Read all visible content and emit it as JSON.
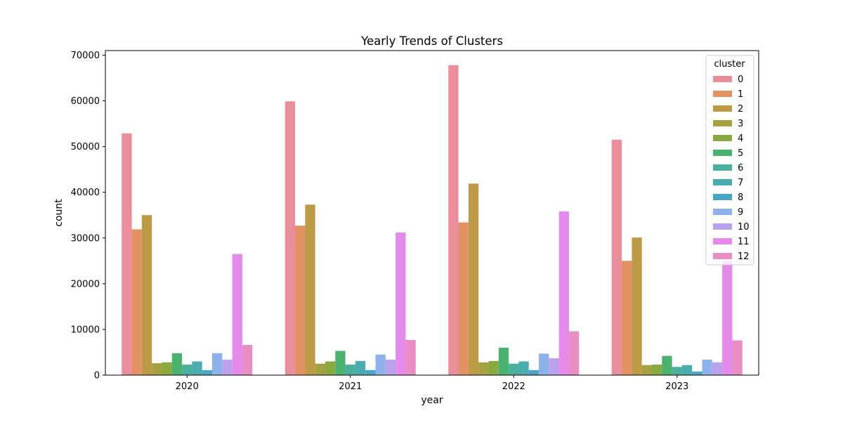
{
  "chart_data": {
    "type": "bar",
    "title": "Yearly Trends of Clusters",
    "xlabel": "year",
    "ylabel": "count",
    "categories": [
      "2020",
      "2021",
      "2022",
      "2023"
    ],
    "ylim": [
      0,
      71000
    ],
    "yticks": [
      0,
      10000,
      20000,
      30000,
      40000,
      50000,
      60000,
      70000
    ],
    "ytick_labels": [
      "0",
      "10000",
      "20000",
      "30000",
      "40000",
      "50000",
      "60000",
      "70000"
    ],
    "grid": false,
    "legend": {
      "title": "cluster",
      "placement": "top-right"
    },
    "series": [
      {
        "name": "0",
        "color": "#eb8e9b",
        "values": [
          52900,
          59900,
          67800,
          51500
        ]
      },
      {
        "name": "1",
        "color": "#e19162",
        "values": [
          31900,
          32700,
          33400,
          25000
        ]
      },
      {
        "name": "2",
        "color": "#bd9a45",
        "values": [
          35000,
          37300,
          41900,
          30100
        ]
      },
      {
        "name": "3",
        "color": "#a5a140",
        "values": [
          2600,
          2500,
          2800,
          2200
        ]
      },
      {
        "name": "4",
        "color": "#88aa41",
        "values": [
          2800,
          3000,
          3100,
          2300
        ]
      },
      {
        "name": "5",
        "color": "#4bb16f",
        "values": [
          4800,
          5300,
          6000,
          4200
        ]
      },
      {
        "name": "6",
        "color": "#4ab09b",
        "values": [
          2300,
          2300,
          2500,
          1800
        ]
      },
      {
        "name": "7",
        "color": "#4aacaf",
        "values": [
          3000,
          3100,
          3000,
          2200
        ]
      },
      {
        "name": "8",
        "color": "#4ba6c5",
        "values": [
          1100,
          1100,
          1100,
          800
        ]
      },
      {
        "name": "9",
        "color": "#8eb1eb",
        "values": [
          4800,
          4500,
          4700,
          3400
        ]
      },
      {
        "name": "10",
        "color": "#b9a2eb",
        "values": [
          3400,
          3400,
          3700,
          2800
        ]
      },
      {
        "name": "11",
        "color": "#e48aeb",
        "values": [
          26500,
          31200,
          35800,
          25000
        ]
      },
      {
        "name": "12",
        "color": "#e88ec4",
        "values": [
          6600,
          7700,
          9600,
          7600
        ]
      }
    ]
  }
}
